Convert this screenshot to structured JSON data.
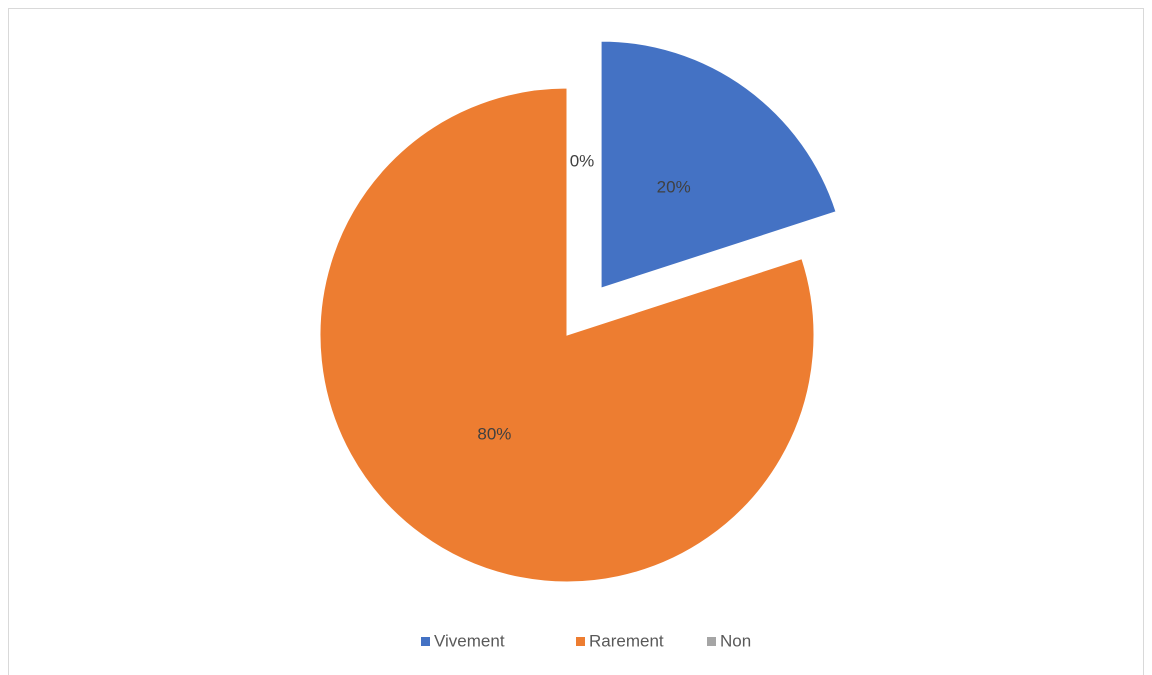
{
  "chart_data": {
    "type": "pie",
    "categories": [
      "Vivement",
      "Rarement",
      "Non"
    ],
    "values": [
      20,
      80,
      0
    ],
    "value_labels": [
      "20%",
      "80%",
      "0%"
    ],
    "colors": [
      "#4472c4",
      "#ed7d31",
      "#a5a5a5"
    ],
    "explode": [
      true,
      false,
      false
    ],
    "legend": "bottom"
  }
}
